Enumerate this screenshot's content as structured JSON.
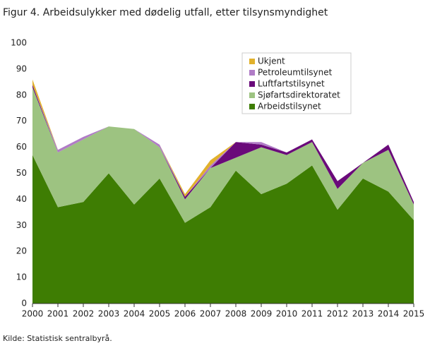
{
  "chart_data": {
    "type": "stacked_area",
    "title": "Figur 4. Arbeidsulykker med dødelig utfall, etter tilsynsmyndighet",
    "source": "Kilde: Statistisk sentralbyrå.",
    "categories": [
      "2000",
      "2001",
      "2002",
      "2003",
      "2004",
      "2005",
      "2006",
      "2007",
      "2008",
      "2009",
      "2010",
      "2011",
      "2012",
      "2013",
      "2014",
      "2015"
    ],
    "series": [
      {
        "name": "Arbeidstilsynet",
        "color": "#3e7d03",
        "values": [
          57,
          37,
          39,
          50,
          38,
          48,
          31,
          37,
          51,
          42,
          46,
          53,
          36,
          48,
          43,
          32
        ]
      },
      {
        "name": "Sjøfartsdirektoratet",
        "color": "#9dc381",
        "values": [
          26,
          21,
          24,
          18,
          29,
          12,
          9,
          15,
          5,
          18,
          11,
          9,
          8,
          6,
          16,
          6
        ]
      },
      {
        "name": "Luftfartstilsynet",
        "color": "#6a0a7a",
        "values": [
          1,
          0,
          0,
          0,
          0,
          0,
          1,
          0,
          6,
          1,
          1,
          1,
          3,
          0,
          2,
          1
        ]
      },
      {
        "name": "Petroleumtilsynet",
        "color": "#b07cc6",
        "values": [
          0,
          1,
          1,
          0,
          0,
          1,
          0,
          1,
          0,
          1,
          0,
          0,
          0,
          0,
          0,
          0
        ]
      },
      {
        "name": "Ukjent",
        "color": "#e1b12c",
        "values": [
          2,
          0,
          0,
          0,
          0,
          0,
          1,
          2,
          0,
          0,
          0,
          0,
          0,
          0,
          0,
          0
        ]
      }
    ],
    "ylim": [
      0,
      100
    ],
    "yticks": [
      0,
      10,
      20,
      30,
      40,
      50,
      60,
      70,
      80,
      90,
      100
    ],
    "grid": false
  }
}
